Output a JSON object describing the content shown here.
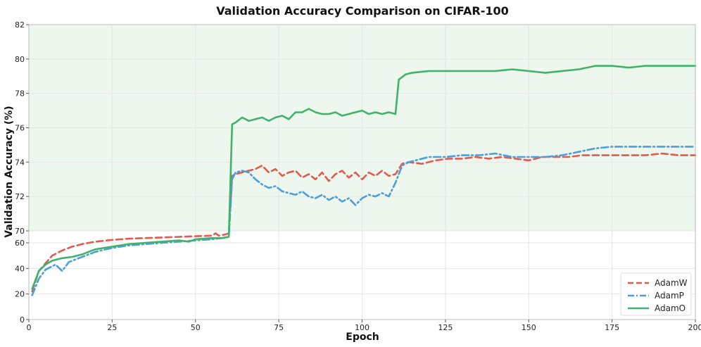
{
  "chart_data": {
    "type": "line",
    "title": "Validation Accuracy Comparison on CIFAR-100",
    "xlabel": "Epoch",
    "ylabel": "Validation Accuracy (%)",
    "xlim": [
      0,
      200
    ],
    "x_ticks": [
      0,
      25,
      50,
      75,
      100,
      125,
      150,
      175,
      200
    ],
    "y_axis_note": "broken y-axis: linear 0-60 in lower section, zoomed 70-82 in upper section",
    "y_ticks_lower": [
      0,
      20,
      40,
      60
    ],
    "y_ticks_upper": [
      70,
      72,
      74,
      76,
      78,
      80,
      82
    ],
    "grid": true,
    "legend_position": "bottom-right",
    "highlight_region": {
      "from": 70,
      "to": 82,
      "color": "#eef7ee"
    },
    "series": [
      {
        "name": "AdamW",
        "color": "#e05a4e",
        "style": "dashed",
        "points": [
          [
            1,
            22
          ],
          [
            3,
            38
          ],
          [
            5,
            44
          ],
          [
            7,
            50
          ],
          [
            10,
            54
          ],
          [
            13,
            57
          ],
          [
            16,
            59
          ],
          [
            20,
            61
          ],
          [
            25,
            62.5
          ],
          [
            30,
            63.5
          ],
          [
            35,
            64
          ],
          [
            40,
            64.5
          ],
          [
            45,
            65
          ],
          [
            50,
            65.5
          ],
          [
            55,
            66
          ],
          [
            56,
            68
          ],
          [
            57,
            66
          ],
          [
            59,
            67
          ],
          [
            60,
            68
          ],
          [
            61,
            73.2
          ],
          [
            62,
            73.3
          ],
          [
            64,
            73.4
          ],
          [
            66,
            73.5
          ],
          [
            68,
            73.6
          ],
          [
            70,
            73.8
          ],
          [
            72,
            73.4
          ],
          [
            74,
            73.6
          ],
          [
            76,
            73.2
          ],
          [
            78,
            73.4
          ],
          [
            80,
            73.5
          ],
          [
            82,
            73.1
          ],
          [
            84,
            73.3
          ],
          [
            86,
            73.0
          ],
          [
            88,
            73.4
          ],
          [
            90,
            72.9
          ],
          [
            92,
            73.3
          ],
          [
            94,
            73.5
          ],
          [
            96,
            73.1
          ],
          [
            98,
            73.4
          ],
          [
            100,
            73.0
          ],
          [
            102,
            73.4
          ],
          [
            104,
            73.2
          ],
          [
            106,
            73.5
          ],
          [
            108,
            73.2
          ],
          [
            110,
            73.3
          ],
          [
            112,
            73.9
          ],
          [
            114,
            74.0
          ],
          [
            118,
            73.9
          ],
          [
            122,
            74.1
          ],
          [
            126,
            74.2
          ],
          [
            130,
            74.2
          ],
          [
            134,
            74.3
          ],
          [
            138,
            74.2
          ],
          [
            142,
            74.3
          ],
          [
            146,
            74.2
          ],
          [
            150,
            74.1
          ],
          [
            154,
            74.3
          ],
          [
            158,
            74.3
          ],
          [
            162,
            74.3
          ],
          [
            166,
            74.4
          ],
          [
            170,
            74.4
          ],
          [
            175,
            74.4
          ],
          [
            180,
            74.4
          ],
          [
            185,
            74.4
          ],
          [
            190,
            74.5
          ],
          [
            195,
            74.4
          ],
          [
            200,
            74.4
          ]
        ]
      },
      {
        "name": "AdamP",
        "color": "#4a9fdc",
        "style": "dashdot",
        "points": [
          [
            1,
            19
          ],
          [
            3,
            32
          ],
          [
            5,
            39
          ],
          [
            8,
            43
          ],
          [
            10,
            38
          ],
          [
            12,
            45
          ],
          [
            15,
            48
          ],
          [
            18,
            51
          ],
          [
            20,
            53
          ],
          [
            25,
            56
          ],
          [
            30,
            58
          ],
          [
            35,
            59
          ],
          [
            40,
            60
          ],
          [
            45,
            61
          ],
          [
            50,
            62
          ],
          [
            55,
            63
          ],
          [
            58,
            64
          ],
          [
            60,
            65
          ],
          [
            61,
            73.0
          ],
          [
            62,
            73.4
          ],
          [
            64,
            73.5
          ],
          [
            66,
            73.4
          ],
          [
            68,
            73.0
          ],
          [
            70,
            72.7
          ],
          [
            72,
            72.5
          ],
          [
            74,
            72.6
          ],
          [
            76,
            72.3
          ],
          [
            78,
            72.2
          ],
          [
            80,
            72.1
          ],
          [
            82,
            72.3
          ],
          [
            84,
            72.0
          ],
          [
            86,
            71.9
          ],
          [
            88,
            72.1
          ],
          [
            90,
            71.8
          ],
          [
            92,
            72.0
          ],
          [
            94,
            71.7
          ],
          [
            96,
            71.9
          ],
          [
            98,
            71.5
          ],
          [
            100,
            71.9
          ],
          [
            102,
            72.1
          ],
          [
            104,
            72.0
          ],
          [
            106,
            72.2
          ],
          [
            108,
            72.0
          ],
          [
            110,
            72.8
          ],
          [
            112,
            73.8
          ],
          [
            114,
            74.0
          ],
          [
            116,
            74.1
          ],
          [
            120,
            74.3
          ],
          [
            125,
            74.3
          ],
          [
            130,
            74.4
          ],
          [
            135,
            74.4
          ],
          [
            140,
            74.5
          ],
          [
            145,
            74.3
          ],
          [
            150,
            74.3
          ],
          [
            155,
            74.3
          ],
          [
            160,
            74.4
          ],
          [
            165,
            74.6
          ],
          [
            170,
            74.8
          ],
          [
            175,
            74.9
          ],
          [
            180,
            74.9
          ],
          [
            185,
            74.9
          ],
          [
            190,
            74.9
          ],
          [
            195,
            74.9
          ],
          [
            200,
            74.9
          ]
        ]
      },
      {
        "name": "AdamO",
        "color": "#3fb36a",
        "style": "solid",
        "points": [
          [
            1,
            24
          ],
          [
            3,
            38
          ],
          [
            5,
            43
          ],
          [
            7,
            46
          ],
          [
            10,
            48
          ],
          [
            13,
            49
          ],
          [
            16,
            51
          ],
          [
            18,
            53
          ],
          [
            20,
            55
          ],
          [
            25,
            57
          ],
          [
            30,
            59
          ],
          [
            35,
            60
          ],
          [
            40,
            61
          ],
          [
            45,
            62
          ],
          [
            48,
            61
          ],
          [
            50,
            63
          ],
          [
            55,
            64
          ],
          [
            58,
            64
          ],
          [
            60,
            65
          ],
          [
            61,
            76.2
          ],
          [
            62,
            76.3
          ],
          [
            64,
            76.6
          ],
          [
            66,
            76.4
          ],
          [
            68,
            76.5
          ],
          [
            70,
            76.6
          ],
          [
            72,
            76.4
          ],
          [
            74,
            76.6
          ],
          [
            76,
            76.7
          ],
          [
            78,
            76.5
          ],
          [
            80,
            76.9
          ],
          [
            82,
            76.9
          ],
          [
            84,
            77.1
          ],
          [
            86,
            76.9
          ],
          [
            88,
            76.8
          ],
          [
            90,
            76.8
          ],
          [
            92,
            76.9
          ],
          [
            94,
            76.7
          ],
          [
            96,
            76.8
          ],
          [
            98,
            76.9
          ],
          [
            100,
            77.0
          ],
          [
            102,
            76.8
          ],
          [
            104,
            76.9
          ],
          [
            106,
            76.8
          ],
          [
            108,
            76.9
          ],
          [
            110,
            76.8
          ],
          [
            111,
            78.8
          ],
          [
            113,
            79.1
          ],
          [
            115,
            79.2
          ],
          [
            120,
            79.3
          ],
          [
            125,
            79.3
          ],
          [
            130,
            79.3
          ],
          [
            135,
            79.3
          ],
          [
            140,
            79.3
          ],
          [
            145,
            79.4
          ],
          [
            150,
            79.3
          ],
          [
            155,
            79.2
          ],
          [
            160,
            79.3
          ],
          [
            165,
            79.4
          ],
          [
            170,
            79.6
          ],
          [
            175,
            79.6
          ],
          [
            180,
            79.5
          ],
          [
            185,
            79.6
          ],
          [
            190,
            79.6
          ],
          [
            195,
            79.6
          ],
          [
            200,
            79.6
          ]
        ]
      }
    ]
  }
}
